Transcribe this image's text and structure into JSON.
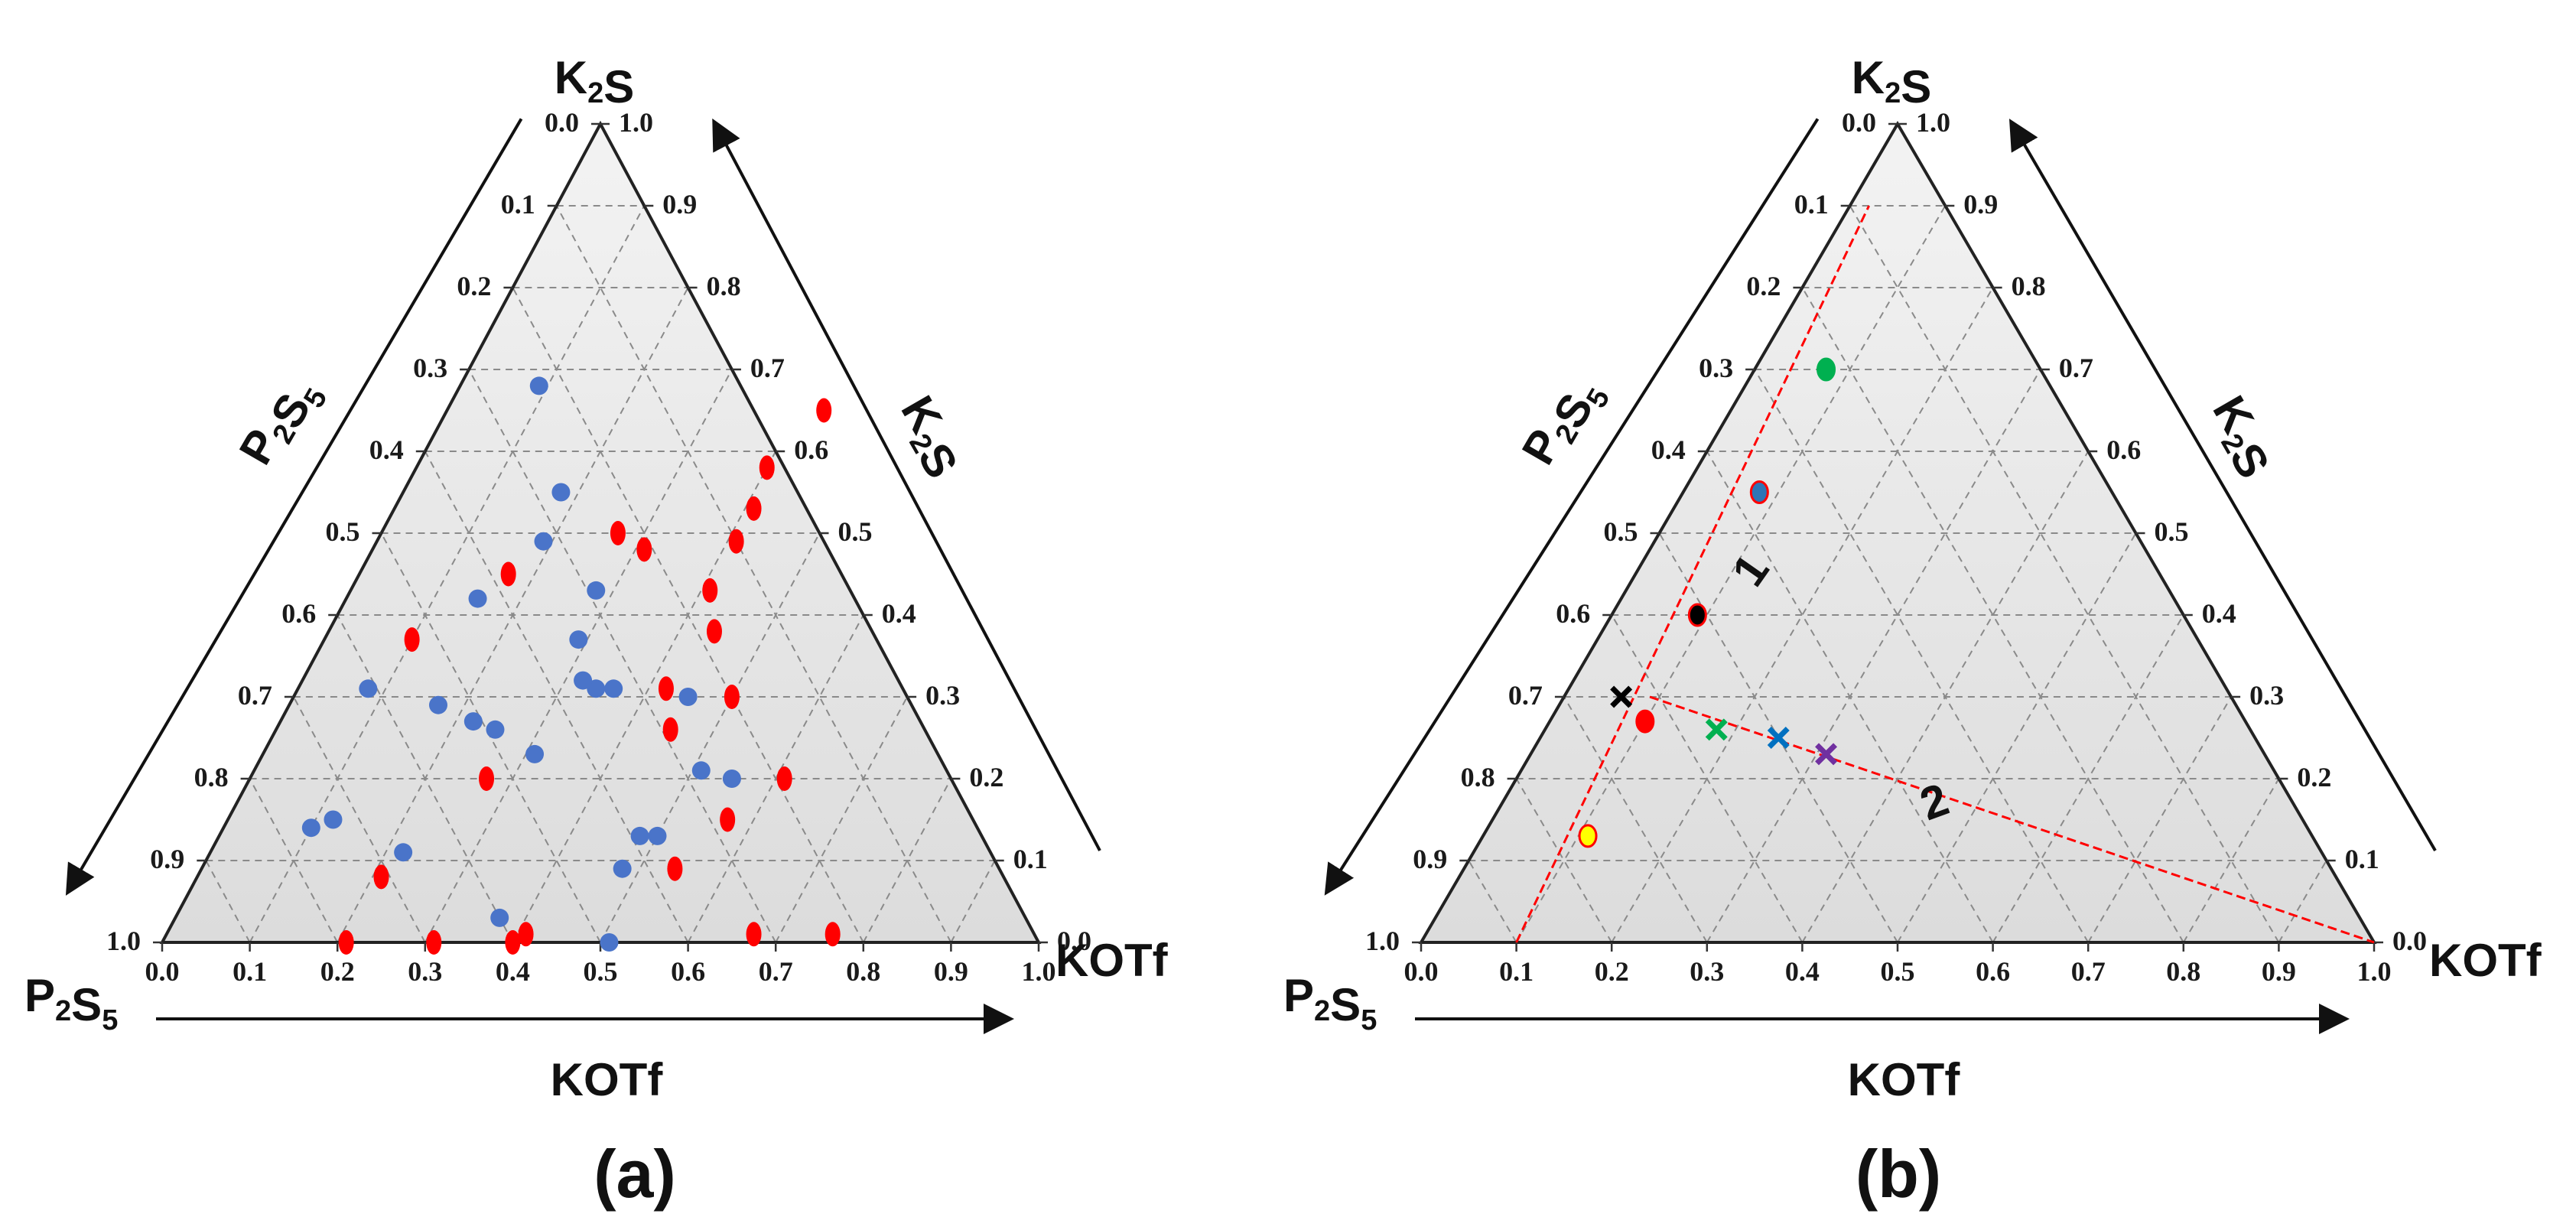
{
  "figure": {
    "panel_labels": [
      "(a)",
      "(b)"
    ]
  },
  "chart_data": [
    {
      "type": "scatter",
      "subtype": "ternary",
      "panel": "(a)",
      "corners": {
        "top": "K2S",
        "left": "P2S5",
        "right": "KOTf"
      },
      "axes": {
        "bottom": {
          "title": "KOTf",
          "ticks": [
            "0.0",
            "0.1",
            "0.2",
            "0.3",
            "0.4",
            "0.5",
            "0.6",
            "0.7",
            "0.8",
            "0.9",
            "1.0"
          ]
        },
        "left": {
          "title": "P2S5",
          "ticks": [
            "0.0",
            "0.1",
            "0.2",
            "0.3",
            "0.4",
            "0.5",
            "0.6",
            "0.7",
            "0.8",
            "0.9",
            "1.0"
          ]
        },
        "right": {
          "title": "K2S",
          "ticks": [
            "0.0",
            "0.1",
            "0.2",
            "0.3",
            "0.4",
            "0.5",
            "0.6",
            "0.7",
            "0.8",
            "0.9",
            "1.0"
          ]
        }
      },
      "grid": true,
      "series": [
        {
          "name": "red",
          "color": "#ff0000",
          "marker": "ellipse",
          "points": [
            {
              "kotf": 0.21,
              "k2s": 0.0
            },
            {
              "kotf": 0.31,
              "k2s": 0.0
            },
            {
              "kotf": 0.4,
              "k2s": 0.0
            },
            {
              "kotf": 0.41,
              "k2s": 0.01
            },
            {
              "kotf": 0.67,
              "k2s": 0.01
            },
            {
              "kotf": 0.76,
              "k2s": 0.01
            },
            {
              "kotf": 0.21,
              "k2s": 0.08
            },
            {
              "kotf": 0.54,
              "k2s": 0.09
            },
            {
              "kotf": 0.57,
              "k2s": 0.15
            },
            {
              "kotf": 0.27,
              "k2s": 0.2
            },
            {
              "kotf": 0.61,
              "k2s": 0.2
            },
            {
              "kotf": 0.45,
              "k2s": 0.26
            },
            {
              "kotf": 0.5,
              "k2s": 0.3
            },
            {
              "kotf": 0.42,
              "k2s": 0.31
            },
            {
              "kotf": 0.44,
              "k2s": 0.38
            },
            {
              "kotf": 0.1,
              "k2s": 0.37
            },
            {
              "kotf": 0.41,
              "k2s": 0.43
            },
            {
              "kotf": 0.41,
              "k2s": 0.53
            },
            {
              "kotf": 0.17,
              "k2s": 0.45
            },
            {
              "kotf": 0.27,
              "k2s": 0.5
            },
            {
              "kotf": 0.31,
              "k2s": 0.48
            },
            {
              "kotf": 0.4,
              "k2s": 0.58
            },
            {
              "kotf": 0.41,
              "k2s": 0.49
            },
            {
              "kotf": 0.43,
              "k2s": 0.65
            }
          ]
        },
        {
          "name": "blue",
          "color": "#4a74c9",
          "marker": "circle",
          "points": [
            {
              "kotf": 0.51,
              "k2s": 0.0
            },
            {
              "kotf": 0.37,
              "k2s": 0.03
            },
            {
              "kotf": 0.48,
              "k2s": 0.09
            },
            {
              "kotf": 0.48,
              "k2s": 0.13
            },
            {
              "kotf": 0.5,
              "k2s": 0.13
            },
            {
              "kotf": 0.22,
              "k2s": 0.11
            },
            {
              "kotf": 0.1,
              "k2s": 0.14
            },
            {
              "kotf": 0.12,
              "k2s": 0.15
            },
            {
              "kotf": 0.51,
              "k2s": 0.21
            },
            {
              "kotf": 0.55,
              "k2s": 0.2
            },
            {
              "kotf": 0.31,
              "k2s": 0.23
            },
            {
              "kotf": 0.22,
              "k2s": 0.27
            },
            {
              "kotf": 0.25,
              "k2s": 0.26
            },
            {
              "kotf": 0.17,
              "k2s": 0.29
            },
            {
              "kotf": 0.08,
              "k2s": 0.31
            },
            {
              "kotf": 0.34,
              "k2s": 0.31
            },
            {
              "kotf": 0.36,
              "k2s": 0.31
            },
            {
              "kotf": 0.32,
              "k2s": 0.32
            },
            {
              "kotf": 0.45,
              "k2s": 0.3
            },
            {
              "kotf": 0.29,
              "k2s": 0.37
            },
            {
              "kotf": 0.15,
              "k2s": 0.42
            },
            {
              "kotf": 0.28,
              "k2s": 0.43
            },
            {
              "kotf": 0.19,
              "k2s": 0.49
            },
            {
              "kotf": 0.18,
              "k2s": 0.55
            },
            {
              "kotf": 0.09,
              "k2s": 0.68
            }
          ]
        }
      ]
    },
    {
      "type": "scatter",
      "subtype": "ternary",
      "panel": "(b)",
      "corners": {
        "top": "K2S",
        "left": "P2S5",
        "right": "KOTf"
      },
      "axes": {
        "bottom": {
          "title": "KOTf",
          "ticks": [
            "0.0",
            "0.1",
            "0.2",
            "0.3",
            "0.4",
            "0.5",
            "0.6",
            "0.7",
            "0.8",
            "0.9",
            "1.0"
          ]
        },
        "left": {
          "title": "P2S5",
          "ticks": [
            "0.0",
            "0.1",
            "0.2",
            "0.3",
            "0.4",
            "0.5",
            "0.6",
            "0.7",
            "0.8",
            "0.9",
            "1.0"
          ]
        },
        "right": {
          "title": "K2S",
          "ticks": [
            "0.0",
            "0.1",
            "0.2",
            "0.3",
            "0.4",
            "0.5",
            "0.6",
            "0.7",
            "0.8",
            "0.9",
            "1.0"
          ]
        }
      },
      "grid": true,
      "lines": [
        {
          "label": "1",
          "color": "#ff0000",
          "style": "dashed",
          "from": {
            "kotf": 0.1,
            "k2s": 0.0
          },
          "to": {
            "kotf": 0.02,
            "k2s": 0.9
          }
        },
        {
          "label": "2",
          "color": "#ff0000",
          "style": "dashed",
          "from": {
            "kotf": 0.09,
            "k2s": 0.3
          },
          "to": {
            "kotf": 1.0,
            "k2s": 0.0
          }
        }
      ],
      "points": [
        {
          "kotf": 0.075,
          "k2s": 0.7,
          "color": "#00b050",
          "marker": "circle",
          "border": "#00b050"
        },
        {
          "kotf": 0.08,
          "k2s": 0.55,
          "color": "#2e75b6",
          "marker": "circle",
          "border": "#ff0000"
        },
        {
          "kotf": 0.09,
          "k2s": 0.4,
          "color": "#000000",
          "marker": "circle",
          "border": "#ff0000"
        },
        {
          "kotf": 0.1,
          "k2s": 0.27,
          "color": "#ff0000",
          "marker": "circle",
          "border": "#ff0000"
        },
        {
          "kotf": 0.11,
          "k2s": 0.13,
          "color": "#ffff00",
          "marker": "circle",
          "border": "#ff0000"
        },
        {
          "kotf": 0.06,
          "k2s": 0.3,
          "color": "#000000",
          "marker": "x"
        },
        {
          "kotf": 0.18,
          "k2s": 0.26,
          "color": "#00b050",
          "marker": "x"
        },
        {
          "kotf": 0.25,
          "k2s": 0.25,
          "color": "#0070c0",
          "marker": "x"
        },
        {
          "kotf": 0.31,
          "k2s": 0.23,
          "color": "#7030a0",
          "marker": "x"
        }
      ],
      "annotations": [
        {
          "text": "1",
          "near": {
            "kotf": 0.1,
            "k2s": 0.47
          }
        },
        {
          "text": "2",
          "near": {
            "kotf": 0.43,
            "k2s": 0.18
          }
        }
      ]
    }
  ]
}
